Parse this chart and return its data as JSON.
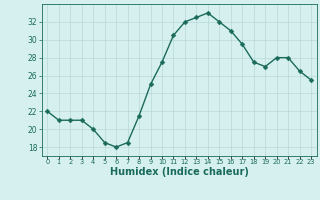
{
  "x": [
    0,
    1,
    2,
    3,
    4,
    5,
    6,
    7,
    8,
    9,
    10,
    11,
    12,
    13,
    14,
    15,
    16,
    17,
    18,
    19,
    20,
    21,
    22,
    23
  ],
  "y": [
    22,
    21,
    21,
    21,
    20,
    18.5,
    18,
    18.5,
    21.5,
    25,
    27.5,
    30.5,
    32,
    32.5,
    33,
    32,
    31,
    29.5,
    27.5,
    27,
    28,
    28,
    26.5,
    25.5
  ],
  "line_color": "#1a6b5a",
  "marker": "D",
  "marker_size": 2.5,
  "linewidth": 1.0,
  "bg_color": "#d6f0f0",
  "grid_color": "#b8d8d8",
  "tick_color": "#1a6b5a",
  "xlabel": "Humidex (Indice chaleur)",
  "xlabel_fontsize": 7,
  "ylabel_ticks": [
    18,
    20,
    22,
    24,
    26,
    28,
    30,
    32
  ],
  "xlim": [
    -0.5,
    23.5
  ],
  "ylim": [
    17,
    34
  ],
  "xtick_labels": [
    "0",
    "1",
    "2",
    "3",
    "4",
    "5",
    "6",
    "7",
    "8",
    "9",
    "10",
    "11",
    "12",
    "13",
    "14",
    "15",
    "16",
    "17",
    "18",
    "19",
    "20",
    "21",
    "22",
    "23"
  ]
}
